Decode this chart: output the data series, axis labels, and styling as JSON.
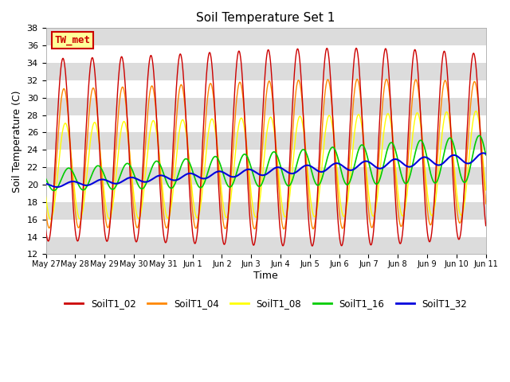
{
  "title": "Soil Temperature Set 1",
  "xlabel": "Time",
  "ylabel": "Soil Temperature (C)",
  "ylim": [
    12,
    38
  ],
  "yticks": [
    12,
    14,
    16,
    18,
    20,
    22,
    24,
    26,
    28,
    30,
    32,
    34,
    36,
    38
  ],
  "fig_bg": "#FFFFFF",
  "plot_bg_light": "#FFFFFF",
  "plot_bg_dark": "#DCDCDC",
  "line_colors": {
    "SoilT1_02": "#CC0000",
    "SoilT1_04": "#FF8800",
    "SoilT1_08": "#FFFF00",
    "SoilT1_16": "#00CC00",
    "SoilT1_32": "#0000DD"
  },
  "legend_label": "TW_met",
  "x_tick_labels": [
    "May 27",
    "May 28",
    "May 29",
    "May 30",
    "May 31",
    "Jun 1",
    "Jun 2",
    "Jun 3",
    "Jun 4",
    "Jun 5",
    "Jun 6",
    "Jun 7",
    "Jun 8",
    "Jun 9",
    "Jun 10",
    "Jun 11"
  ]
}
